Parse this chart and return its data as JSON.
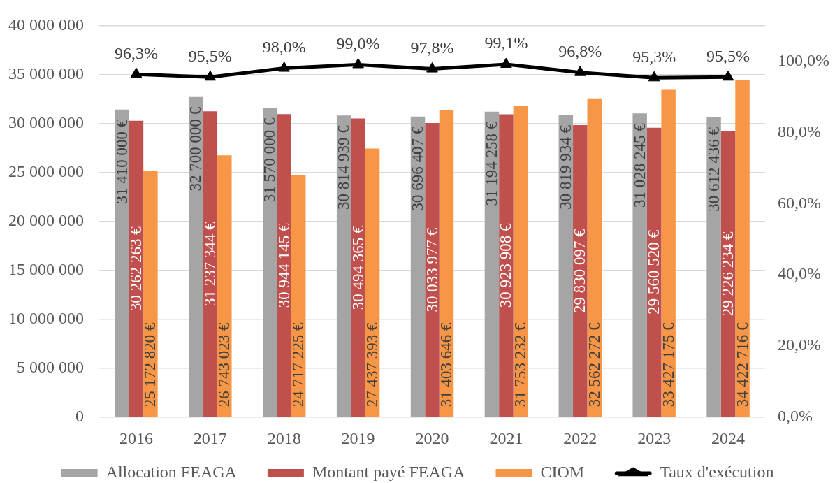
{
  "chart_data": {
    "type": "bar",
    "categories": [
      "2016",
      "2017",
      "2018",
      "2019",
      "2020",
      "2021",
      "2022",
      "2023",
      "2024"
    ],
    "series": [
      {
        "name": "Allocation FEAGA",
        "color": "#a5a5a5",
        "values": [
          31410000,
          32700000,
          31570000,
          30814939,
          30696407,
          31194258,
          30819934,
          31028245,
          30612436
        ],
        "value_labels": [
          "31 410 000 €",
          "32 700 000 €",
          "31 570 000 €",
          "30 814 939 €",
          "30 696 407 €",
          "31 194 258 €",
          "30 819 934 €",
          "31 028 245 €",
          "30 612 436 €"
        ]
      },
      {
        "name": "Montant payé FEAGA",
        "color": "#c0504d",
        "values": [
          30262263,
          31237344,
          30944145,
          30494365,
          30033977,
          30923908,
          29830097,
          29560520,
          29226234
        ],
        "value_labels": [
          "30 262 263 €",
          "31 237 344 €",
          "30 944 145 €",
          "30 494 365 €",
          "30 033 977 €",
          "30 923 908 €",
          "29 830 097 €",
          "29 560 520 €",
          "29 226 234 €"
        ]
      },
      {
        "name": "CIOM",
        "color": "#f79646",
        "values": [
          25172820,
          26743023,
          24717225,
          27437393,
          31403646,
          31753232,
          32562272,
          33427175,
          34422716
        ],
        "value_labels": [
          "25 172 820 €",
          "26 743 023 €",
          "24 717 225 €",
          "27 437 393 €",
          "31 403 646 €",
          "31 753 232 €",
          "32 562 272 €",
          "33 427 175 €",
          "34 422 716 €"
        ]
      },
      {
        "name": "Taux d'exécution",
        "type": "line",
        "axis": "y2",
        "color": "#000000",
        "values": [
          96.3,
          95.5,
          98.0,
          99.0,
          97.8,
          99.1,
          96.8,
          95.3,
          95.5
        ],
        "value_labels": [
          "96,3%",
          "95,5%",
          "98,0%",
          "99,0%",
          "97,8%",
          "99,1%",
          "96,8%",
          "95,3%",
          "95,5%"
        ]
      }
    ],
    "ylim": [
      0,
      40000000
    ],
    "yticks": [
      0,
      {
        "value": 5000000,
        "label": "5 000 000"
      },
      {
        "value": 10000000,
        "label": "10 000 000"
      },
      {
        "value": 15000000,
        "label": "15 000 000"
      },
      {
        "value": 20000000,
        "label": "20 000 000"
      },
      {
        "value": 25000000,
        "label": "25 000 000"
      },
      {
        "value": 30000000,
        "label": "30 000 000"
      },
      {
        "value": 35000000,
        "label": "35 000 000"
      },
      {
        "value": 40000000,
        "label": "40 000 000"
      }
    ],
    "y2lim": [
      0,
      110
    ],
    "y2ticks": [
      {
        "value": 0,
        "label": "0,0%"
      },
      {
        "value": 20,
        "label": "20,0%"
      },
      {
        "value": 40,
        "label": "40,0%"
      },
      {
        "value": 60,
        "label": "60,0%"
      },
      {
        "value": 80,
        "label": "80,0%"
      },
      {
        "value": 100,
        "label": "100,0%"
      }
    ],
    "grid": "y",
    "legend": "bottom",
    "marker": "triangle"
  }
}
